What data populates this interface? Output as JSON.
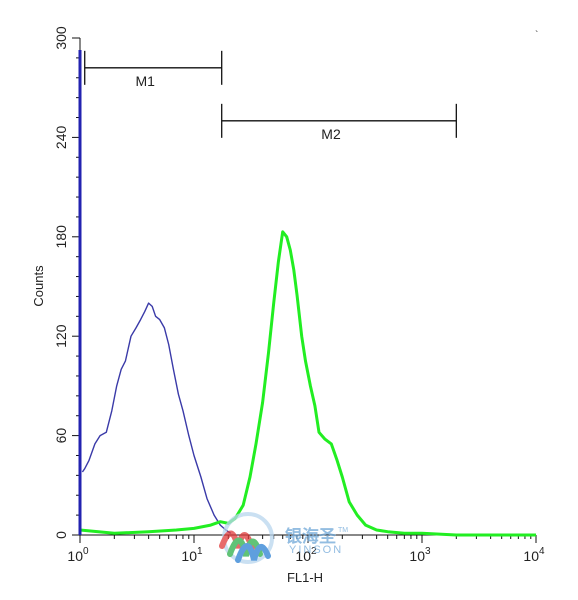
{
  "chart_data": {
    "type": "line",
    "xlabel": "FL1-H",
    "ylabel": "Counts",
    "xscale": "log",
    "xlim": [
      1,
      10000
    ],
    "ylim": [
      0,
      300
    ],
    "xticks": [
      {
        "value": 1,
        "base": "10",
        "exp": "0"
      },
      {
        "value": 10,
        "base": "10",
        "exp": "1"
      },
      {
        "value": 100,
        "base": "10",
        "exp": "2"
      },
      {
        "value": 1000,
        "base": "10",
        "exp": "3"
      },
      {
        "value": 10000,
        "base": "10",
        "exp": "4"
      }
    ],
    "yticks": [
      0,
      60,
      120,
      180,
      240,
      300
    ],
    "gates": [
      {
        "name": "M1",
        "x_start": 1.1,
        "x_end": 17.5,
        "y": 282
      },
      {
        "name": "M2",
        "x_start": 17.5,
        "x_end": 2000,
        "y": 250
      }
    ],
    "series": [
      {
        "color": "#3a3aa8",
        "x": [
          1.05,
          1.1,
          1.2,
          1.35,
          1.5,
          1.7,
          1.9,
          2.1,
          2.3,
          2.5,
          2.8,
          3.1,
          3.4,
          3.7,
          4.0,
          4.3,
          4.6,
          5.0,
          5.5,
          6.0,
          6.6,
          7.3,
          8.0,
          9.0,
          10.0,
          11.5,
          13.0,
          15.0,
          17.0,
          19.0,
          21.0
        ],
        "values": [
          38,
          40,
          45,
          55,
          60,
          62,
          75,
          90,
          100,
          105,
          120,
          125,
          130,
          135,
          140,
          138,
          132,
          130,
          125,
          115,
          100,
          85,
          75,
          60,
          48,
          35,
          22,
          12,
          6,
          3,
          1
        ]
      },
      {
        "color": "#22ee22",
        "x": [
          1.0,
          2.0,
          4.0,
          7.0,
          10.0,
          14.0,
          17.0,
          20.0,
          23.0,
          27.0,
          31.0,
          35.0,
          40.0,
          45.0,
          50.0,
          55.0,
          60.0,
          65.0,
          70.0,
          75.0,
          80.0,
          88.0,
          95.0,
          105.0,
          115.0,
          125.0,
          140.0,
          160.0,
          180.0,
          200.0,
          230.0,
          270.0,
          320.0,
          400.0,
          500.0,
          700.0,
          1000.0,
          2000.0,
          5000.0,
          10000.0
        ],
        "values": [
          3,
          1,
          2,
          3,
          4,
          6,
          8,
          7,
          10,
          18,
          35,
          55,
          80,
          110,
          140,
          165,
          183,
          180,
          172,
          160,
          145,
          120,
          105,
          90,
          78,
          62,
          58,
          55,
          45,
          35,
          20,
          12,
          6,
          3,
          2,
          1,
          1,
          0,
          0,
          0
        ]
      }
    ]
  },
  "watermark": {
    "logo": "yinhaisheng-logo",
    "text_cn": "银海圣",
    "trademark": "TM",
    "text_en": "YINSON"
  }
}
